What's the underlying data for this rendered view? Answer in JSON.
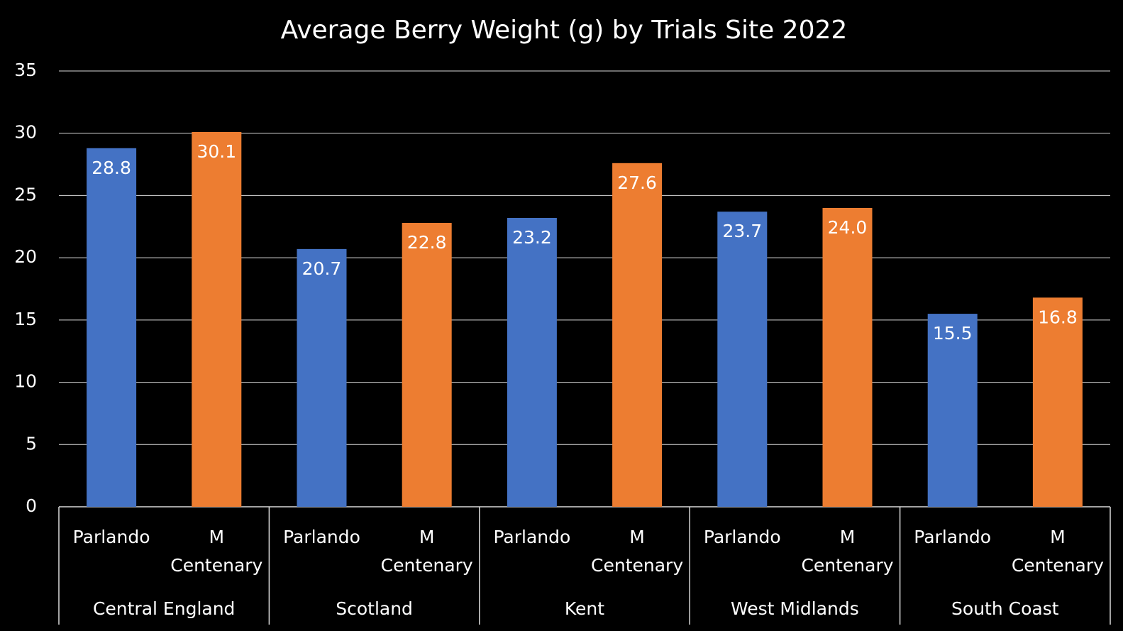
{
  "chart_data": {
    "type": "bar",
    "title": "Average Berry Weight (g) by Trials Site 2022",
    "categories": [
      "Central England",
      "Scotland",
      "Kent",
      "West Midlands",
      "South Coast"
    ],
    "series": [
      {
        "name": "Parlando",
        "color": "#4472c4",
        "values": [
          28.8,
          20.7,
          23.2,
          23.7,
          15.5
        ],
        "value_labels": [
          "28.8",
          "20.7",
          "23.2",
          "23.7",
          "15.5"
        ]
      },
      {
        "name": "M Centenary",
        "color": "#ed7d31",
        "values": [
          30.1,
          22.8,
          27.6,
          24.0,
          16.8
        ],
        "value_labels": [
          "30.1",
          "22.8",
          "27.6",
          "24.0",
          "16.8"
        ]
      }
    ],
    "ylim": [
      0,
      35
    ],
    "yticks": [
      0,
      5,
      10,
      15,
      20,
      25,
      30,
      35
    ],
    "grid": true
  }
}
